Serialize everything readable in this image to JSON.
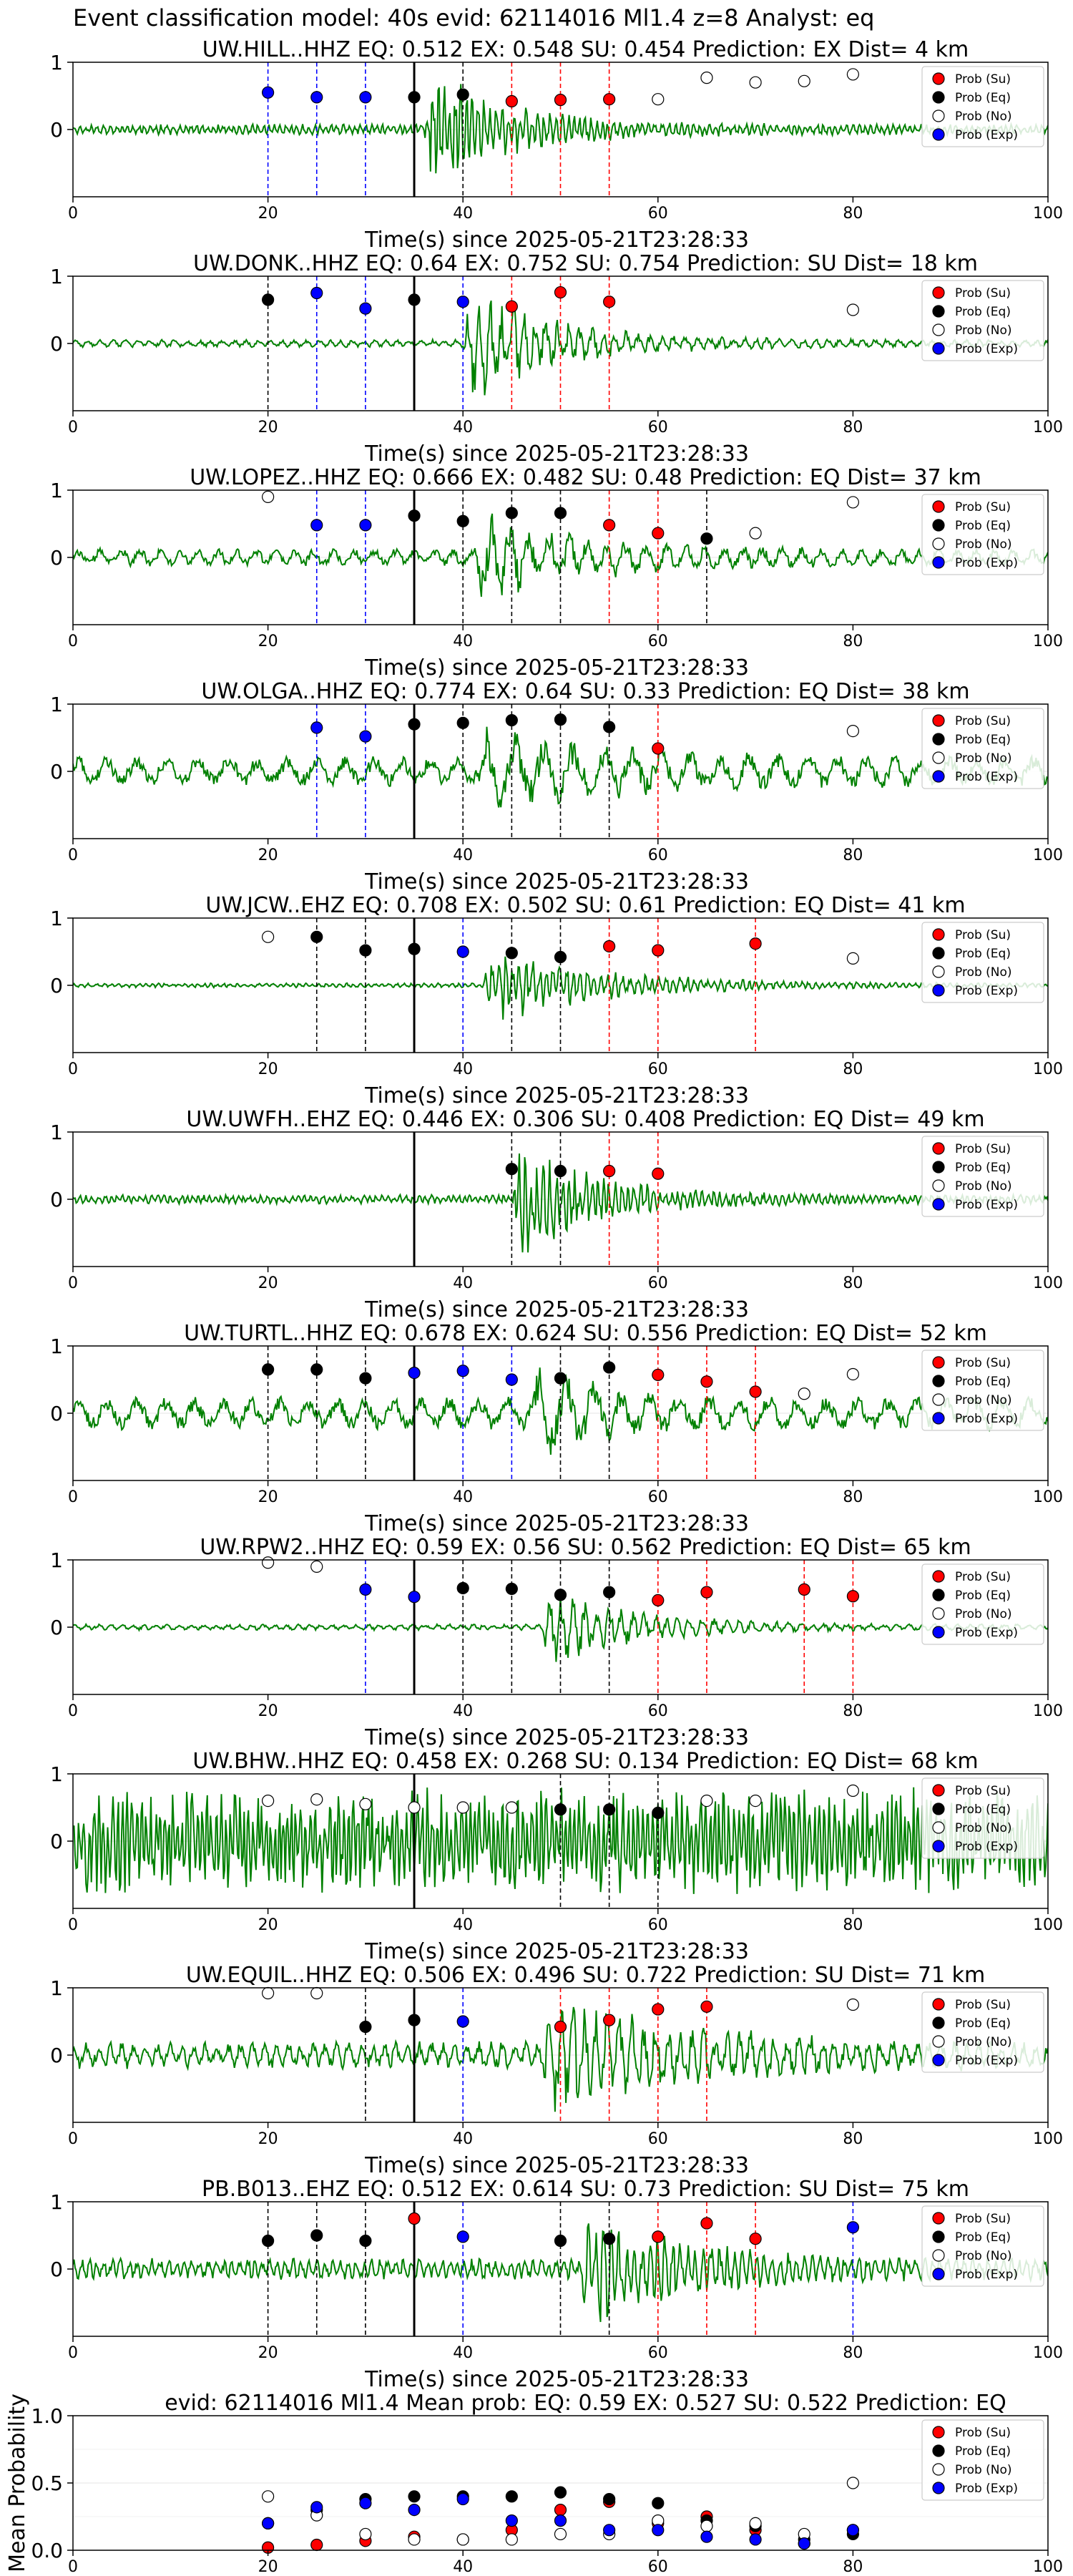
{
  "suptitle": "Event classification model: 40s evid: 62114016 Ml1.4 z=8 Analyst: eq",
  "colors": {
    "su": "#ff0000",
    "eq": "#000000",
    "no": "#ffffff",
    "exp": "#0000ff",
    "waveform": "#008000",
    "vline_su": "#ff0000",
    "vline_eq": "#000000",
    "vline_exp": "#0000ff",
    "origin_line": "#000000"
  },
  "legend_labels": [
    "Prob (Su)",
    "Prob (Eq)",
    "Prob (No)",
    "Prob (Exp)"
  ],
  "chart_data": [
    {
      "type": "scatter",
      "kind": "station",
      "title": "UW.HILL..HHZ   EQ: 0.512  EX: 0.548  SU: 0.454   Prediction: EX    Dist= 4 km",
      "xlabel": "Time(s) since 2025-05-21T23:28:33",
      "ylabel": "",
      "xlim": [
        0,
        100
      ],
      "ylim": [
        -1,
        1
      ],
      "xticks": [
        "0",
        "20",
        "40",
        "60",
        "80",
        "100"
      ],
      "yticks": [
        "1",
        "0"
      ],
      "legend": "top-right",
      "origin_time": 35,
      "waveform": {
        "amp": 0.07,
        "onset": 36,
        "peak": 0.9,
        "decay": 8,
        "wavelength": 0.6,
        "seed": 11
      },
      "series": [
        {
          "name": "Prob (Su)",
          "x": [
            45,
            50,
            55
          ],
          "y": [
            0.42,
            0.44,
            0.45
          ]
        },
        {
          "name": "Prob (Eq)",
          "x": [
            35,
            40
          ],
          "y": [
            0.48,
            0.52
          ]
        },
        {
          "name": "Prob (No)",
          "x": [
            60,
            65,
            70,
            75,
            80
          ],
          "y": [
            0.45,
            0.77,
            0.7,
            0.72,
            0.82
          ]
        },
        {
          "name": "Prob (Exp)",
          "x": [
            20,
            25,
            30
          ],
          "y": [
            0.55,
            0.48,
            0.48
          ]
        }
      ]
    },
    {
      "type": "scatter",
      "kind": "station",
      "title": "UW.DONK..HHZ   EQ: 0.64  EX: 0.752  SU: 0.754   Prediction: SU    Dist= 18 km",
      "xlabel": "Time(s) since 2025-05-21T23:28:33",
      "ylabel": "",
      "xlim": [
        0,
        100
      ],
      "ylim": [
        -1,
        1
      ],
      "xticks": [
        "0",
        "20",
        "40",
        "60",
        "80",
        "100"
      ],
      "yticks": [
        "1",
        "0"
      ],
      "legend": "top-right",
      "origin_time": 35,
      "waveform": {
        "amp": 0.05,
        "onset": 40,
        "peak": 0.8,
        "decay": 9,
        "wavelength": 1.2,
        "seed": 23
      },
      "series": [
        {
          "name": "Prob (Su)",
          "x": [
            45,
            50,
            55
          ],
          "y": [
            0.55,
            0.76,
            0.62
          ]
        },
        {
          "name": "Prob (Eq)",
          "x": [
            20,
            35
          ],
          "y": [
            0.65,
            0.65
          ]
        },
        {
          "name": "Prob (No)",
          "x": [
            80
          ],
          "y": [
            0.5
          ]
        },
        {
          "name": "Prob (Exp)",
          "x": [
            25,
            30,
            40
          ],
          "y": [
            0.75,
            0.52,
            0.62
          ]
        }
      ]
    },
    {
      "type": "scatter",
      "kind": "station",
      "title": "UW.LOPEZ..HHZ   EQ: 0.666  EX: 0.482  SU: 0.48   Prediction: EQ    Dist= 37 km",
      "xlabel": "Time(s) since 2025-05-21T23:28:33",
      "ylabel": "",
      "xlim": [
        0,
        100
      ],
      "ylim": [
        -1,
        1
      ],
      "xticks": [
        "0",
        "20",
        "40",
        "60",
        "80",
        "100"
      ],
      "yticks": [
        "1",
        "0"
      ],
      "legend": "top-right",
      "origin_time": 35,
      "waveform": {
        "amp": 0.12,
        "onset": 41,
        "peak": 0.6,
        "decay": 10,
        "wavelength": 2.0,
        "seed": 37
      },
      "series": [
        {
          "name": "Prob (Su)",
          "x": [
            55,
            60
          ],
          "y": [
            0.48,
            0.36
          ]
        },
        {
          "name": "Prob (Eq)",
          "x": [
            35,
            40,
            45,
            50,
            65
          ],
          "y": [
            0.62,
            0.54,
            0.66,
            0.66,
            0.28
          ]
        },
        {
          "name": "Prob (No)",
          "x": [
            20,
            70,
            80
          ],
          "y": [
            0.9,
            0.36,
            0.82
          ]
        },
        {
          "name": "Prob (Exp)",
          "x": [
            25,
            30
          ],
          "y": [
            0.48,
            0.48
          ]
        }
      ]
    },
    {
      "type": "scatter",
      "kind": "station",
      "title": "UW.OLGA..HHZ   EQ: 0.774  EX: 0.64  SU: 0.33   Prediction: EQ    Dist= 38 km",
      "xlabel": "Time(s) since 2025-05-21T23:28:33",
      "ylabel": "",
      "xlim": [
        0,
        100
      ],
      "ylim": [
        -1,
        1
      ],
      "xticks": [
        "0",
        "20",
        "40",
        "60",
        "80",
        "100"
      ],
      "yticks": [
        "1",
        "0"
      ],
      "legend": "top-right",
      "origin_time": 35,
      "waveform": {
        "amp": 0.2,
        "onset": 41,
        "peak": 0.45,
        "decay": 14,
        "wavelength": 3.0,
        "seed": 41
      },
      "series": [
        {
          "name": "Prob (Su)",
          "x": [
            60
          ],
          "y": [
            0.34
          ]
        },
        {
          "name": "Prob (Eq)",
          "x": [
            35,
            40,
            45,
            50,
            55
          ],
          "y": [
            0.7,
            0.72,
            0.76,
            0.77,
            0.66
          ]
        },
        {
          "name": "Prob (No)",
          "x": [
            80
          ],
          "y": [
            0.6
          ]
        },
        {
          "name": "Prob (Exp)",
          "x": [
            25,
            30
          ],
          "y": [
            0.65,
            0.52
          ]
        }
      ]
    },
    {
      "type": "scatter",
      "kind": "station",
      "title": "UW.JCW..EHZ   EQ: 0.708  EX: 0.502  SU: 0.61   Prediction: EQ    Dist= 41 km",
      "xlabel": "Time(s) since 2025-05-21T23:28:33",
      "ylabel": "",
      "xlim": [
        0,
        100
      ],
      "ylim": [
        -1,
        1
      ],
      "xticks": [
        "0",
        "20",
        "40",
        "60",
        "80",
        "100"
      ],
      "yticks": [
        "1",
        "0"
      ],
      "legend": "top-right",
      "origin_time": 35,
      "waveform": {
        "amp": 0.03,
        "onset": 42,
        "peak": 0.55,
        "decay": 11,
        "wavelength": 0.7,
        "seed": 53
      },
      "series": [
        {
          "name": "Prob (Su)",
          "x": [
            55,
            60,
            70
          ],
          "y": [
            0.58,
            0.52,
            0.62
          ]
        },
        {
          "name": "Prob (Eq)",
          "x": [
            25,
            30,
            35,
            45,
            50
          ],
          "y": [
            0.72,
            0.52,
            0.54,
            0.48,
            0.42
          ]
        },
        {
          "name": "Prob (No)",
          "x": [
            20,
            80
          ],
          "y": [
            0.72,
            0.4
          ]
        },
        {
          "name": "Prob (Exp)",
          "x": [
            40
          ],
          "y": [
            0.5
          ]
        }
      ]
    },
    {
      "type": "scatter",
      "kind": "station",
      "title": "UW.UWFH..EHZ   EQ: 0.446  EX: 0.306  SU: 0.408   Prediction: EQ    Dist= 49 km",
      "xlabel": "Time(s) since 2025-05-21T23:28:33",
      "ylabel": "",
      "xlim": [
        0,
        100
      ],
      "ylim": [
        -1,
        1
      ],
      "xticks": [
        "0",
        "20",
        "40",
        "60",
        "80",
        "100"
      ],
      "yticks": [
        "1",
        "0"
      ],
      "legend": "top-right",
      "origin_time": 35,
      "waveform": {
        "amp": 0.06,
        "onset": 45,
        "peak": 0.8,
        "decay": 8,
        "wavelength": 0.6,
        "seed": 67
      },
      "series": [
        {
          "name": "Prob (Su)",
          "x": [
            55,
            60
          ],
          "y": [
            0.42,
            0.38
          ]
        },
        {
          "name": "Prob (Eq)",
          "x": [
            45,
            50
          ],
          "y": [
            0.45,
            0.42
          ]
        },
        {
          "name": "Prob (No)",
          "x": [],
          "y": []
        },
        {
          "name": "Prob (Exp)",
          "x": [],
          "y": []
        }
      ]
    },
    {
      "type": "scatter",
      "kind": "station",
      "title": "UW.TURTL..HHZ   EQ: 0.678  EX: 0.624  SU: 0.556   Prediction: EQ    Dist= 52 km",
      "xlabel": "Time(s) since 2025-05-21T23:28:33",
      "ylabel": "",
      "xlim": [
        0,
        100
      ],
      "ylim": [
        -1,
        1
      ],
      "xticks": [
        "0",
        "20",
        "40",
        "60",
        "80",
        "100"
      ],
      "yticks": [
        "1",
        "0"
      ],
      "legend": "top-right",
      "origin_time": 35,
      "waveform": {
        "amp": 0.22,
        "onset": 47,
        "peak": 0.6,
        "decay": 6,
        "wavelength": 3.0,
        "seed": 71
      },
      "series": [
        {
          "name": "Prob (Su)",
          "x": [
            60,
            65,
            70
          ],
          "y": [
            0.57,
            0.47,
            0.32
          ]
        },
        {
          "name": "Prob (Eq)",
          "x": [
            20,
            25,
            30,
            50,
            55
          ],
          "y": [
            0.65,
            0.65,
            0.52,
            0.52,
            0.68
          ]
        },
        {
          "name": "Prob (No)",
          "x": [
            75,
            80
          ],
          "y": [
            0.29,
            0.58
          ]
        },
        {
          "name": "Prob (Exp)",
          "x": [
            35,
            40,
            45
          ],
          "y": [
            0.6,
            0.63,
            0.5
          ]
        }
      ]
    },
    {
      "type": "scatter",
      "kind": "station",
      "title": "UW.RPW2..HHZ   EQ: 0.59  EX: 0.56  SU: 0.562   Prediction: EQ    Dist= 65 km",
      "xlabel": "Time(s) since 2025-05-21T23:28:33",
      "ylabel": "",
      "xlim": [
        0,
        100
      ],
      "ylim": [
        -1,
        1
      ],
      "xticks": [
        "0",
        "20",
        "40",
        "60",
        "80",
        "100"
      ],
      "yticks": [
        "1",
        "0"
      ],
      "legend": "top-right",
      "origin_time": 35,
      "waveform": {
        "amp": 0.04,
        "onset": 48,
        "peak": 0.55,
        "decay": 9,
        "wavelength": 1.2,
        "seed": 83
      },
      "series": [
        {
          "name": "Prob (Su)",
          "x": [
            60,
            65,
            75,
            80
          ],
          "y": [
            0.4,
            0.52,
            0.56,
            0.46
          ]
        },
        {
          "name": "Prob (Eq)",
          "x": [
            40,
            45,
            50,
            55
          ],
          "y": [
            0.58,
            0.57,
            0.48,
            0.52
          ]
        },
        {
          "name": "Prob (No)",
          "x": [
            20,
            25
          ],
          "y": [
            0.96,
            0.9
          ]
        },
        {
          "name": "Prob (Exp)",
          "x": [
            30,
            35
          ],
          "y": [
            0.56,
            0.45
          ]
        }
      ]
    },
    {
      "type": "scatter",
      "kind": "station",
      "title": "UW.BHW..HHZ   EQ: 0.458  EX: 0.268  SU: 0.134   Prediction: EQ    Dist= 68 km",
      "xlabel": "Time(s) since 2025-05-21T23:28:33",
      "ylabel": "",
      "xlim": [
        0,
        100
      ],
      "ylim": [
        -1,
        1
      ],
      "xticks": [
        "0",
        "20",
        "40",
        "60",
        "80",
        "100"
      ],
      "yticks": [
        "1",
        "0"
      ],
      "legend": "top-right",
      "origin_time": 35,
      "waveform": {
        "amp": 0.7,
        "onset": 200,
        "peak": 0,
        "decay": 1,
        "wavelength": 0.5,
        "seed": 97
      },
      "series": [
        {
          "name": "Prob (Su)",
          "x": [],
          "y": []
        },
        {
          "name": "Prob (Eq)",
          "x": [
            50,
            55,
            60
          ],
          "y": [
            0.47,
            0.47,
            0.42
          ]
        },
        {
          "name": "Prob (No)",
          "x": [
            20,
            25,
            30,
            35,
            40,
            45,
            65,
            70,
            80
          ],
          "y": [
            0.6,
            0.62,
            0.55,
            0.5,
            0.5,
            0.5,
            0.6,
            0.6,
            0.75
          ]
        },
        {
          "name": "Prob (Exp)",
          "x": [],
          "y": []
        }
      ]
    },
    {
      "type": "scatter",
      "kind": "station",
      "title": "UW.EQUIL..HHZ   EQ: 0.506  EX: 0.496  SU: 0.722   Prediction: SU    Dist= 71 km",
      "xlabel": "Time(s) since 2025-05-21T23:28:33",
      "ylabel": "",
      "xlim": [
        0,
        100
      ],
      "ylim": [
        -1,
        1
      ],
      "xticks": [
        "0",
        "20",
        "40",
        "60",
        "80",
        "100"
      ],
      "yticks": [
        "1",
        "0"
      ],
      "legend": "top-right",
      "origin_time": 35,
      "waveform": {
        "amp": 0.18,
        "onset": 48,
        "peak": 0.7,
        "decay": 14,
        "wavelength": 1.2,
        "seed": 101
      },
      "series": [
        {
          "name": "Prob (Su)",
          "x": [
            50,
            55,
            60,
            65
          ],
          "y": [
            0.42,
            0.52,
            0.68,
            0.72
          ]
        },
        {
          "name": "Prob (Eq)",
          "x": [
            30,
            35
          ],
          "y": [
            0.42,
            0.52
          ]
        },
        {
          "name": "Prob (No)",
          "x": [
            20,
            25,
            80
          ],
          "y": [
            0.92,
            0.92,
            0.75
          ]
        },
        {
          "name": "Prob (Exp)",
          "x": [
            40
          ],
          "y": [
            0.5
          ]
        }
      ]
    },
    {
      "type": "scatter",
      "kind": "station",
      "title": "PB.B013..EHZ   EQ: 0.512  EX: 0.614  SU: 0.73   Prediction: SU    Dist= 75 km",
      "xlabel": "Time(s) since 2025-05-21T23:28:33",
      "ylabel": "",
      "xlim": [
        0,
        100
      ],
      "ylim": [
        -1,
        1
      ],
      "xticks": [
        "0",
        "20",
        "40",
        "60",
        "80",
        "100"
      ],
      "yticks": [
        "1",
        "0"
      ],
      "legend": "top-right",
      "origin_time": 35,
      "waveform": {
        "amp": 0.14,
        "onset": 52,
        "peak": 0.75,
        "decay": 10,
        "wavelength": 0.8,
        "seed": 113
      },
      "series": [
        {
          "name": "Prob (Su)",
          "x": [
            35,
            60,
            65,
            70
          ],
          "y": [
            0.75,
            0.48,
            0.68,
            0.45
          ]
        },
        {
          "name": "Prob (Eq)",
          "x": [
            20,
            25,
            30,
            50,
            55
          ],
          "y": [
            0.42,
            0.5,
            0.42,
            0.42,
            0.45
          ]
        },
        {
          "name": "Prob (No)",
          "x": [],
          "y": []
        },
        {
          "name": "Prob (Exp)",
          "x": [
            40,
            80
          ],
          "y": [
            0.48,
            0.62
          ]
        }
      ]
    },
    {
      "type": "scatter",
      "kind": "mean",
      "title": "evid: 62114016  Ml1.4   Mean prob:   EQ: 0.59  EX: 0.527  SU: 0.522   Prediction: EQ",
      "xlabel": "",
      "ylabel": "Mean Probability",
      "xlim": [
        0,
        100
      ],
      "ylim": [
        0,
        1
      ],
      "xticks": [
        "0",
        "20",
        "40",
        "60",
        "80",
        "100"
      ],
      "yticks": [
        "1.0",
        "0.5",
        "0.0"
      ],
      "legend": "top-right",
      "series": [
        {
          "name": "Prob (Su)",
          "x": [
            20,
            25,
            30,
            35,
            40,
            45,
            50,
            55,
            60,
            65,
            70,
            75,
            80
          ],
          "y": [
            0.02,
            0.04,
            0.07,
            0.1,
            0.08,
            0.15,
            0.3,
            0.36,
            0.2,
            0.25,
            0.15,
            0.05,
            0.15
          ]
        },
        {
          "name": "Prob (Eq)",
          "x": [
            20,
            25,
            30,
            35,
            40,
            45,
            50,
            55,
            60,
            65,
            70,
            75,
            80
          ],
          "y": [
            0.2,
            0.3,
            0.38,
            0.4,
            0.4,
            0.4,
            0.43,
            0.38,
            0.35,
            0.22,
            0.18,
            0.08,
            0.12
          ]
        },
        {
          "name": "Prob (No)",
          "x": [
            20,
            25,
            30,
            35,
            40,
            45,
            50,
            55,
            60,
            65,
            70,
            75,
            80
          ],
          "y": [
            0.4,
            0.26,
            0.12,
            0.08,
            0.08,
            0.08,
            0.12,
            0.12,
            0.22,
            0.18,
            0.2,
            0.12,
            0.5
          ]
        },
        {
          "name": "Prob (Exp)",
          "x": [
            20,
            25,
            30,
            35,
            40,
            45,
            50,
            55,
            60,
            65,
            70,
            75,
            80
          ],
          "y": [
            0.2,
            0.32,
            0.35,
            0.3,
            0.38,
            0.22,
            0.22,
            0.15,
            0.15,
            0.1,
            0.08,
            0.05,
            0.15
          ]
        }
      ]
    }
  ]
}
